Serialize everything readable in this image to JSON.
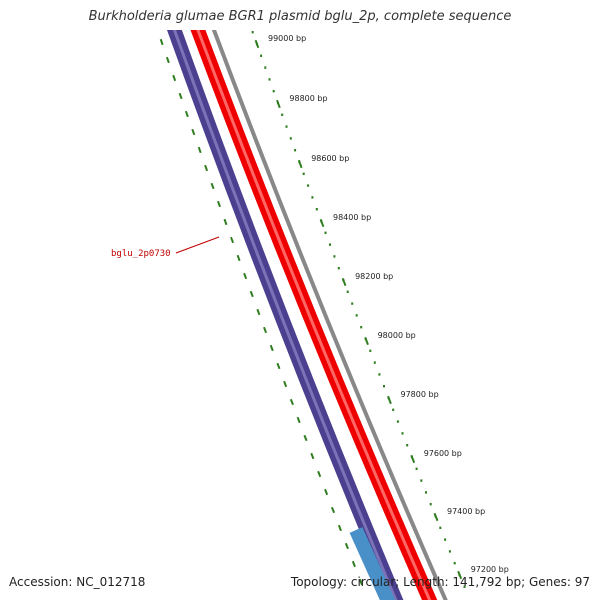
{
  "title": "Burkholderia glumae BGR1 plasmid bglu_2p, complete sequence",
  "footer": {
    "accession": "Accession: NC_012718",
    "summary": "Topology: circular; Length: 141,792 bp; Genes: 97"
  },
  "scale": {
    "ticks": [
      "99000 bp",
      "98800 bp",
      "98600 bp",
      "98400 bp",
      "98200 bp",
      "98000 bp",
      "97800 bp",
      "97600 bp",
      "97400 bp",
      "97200 bp"
    ]
  },
  "genes": [
    {
      "name": "bglu_2p0730"
    }
  ],
  "colors": {
    "cds": "#4b3f8f",
    "cds_light": "#4a90c8",
    "gene": "#ee0000",
    "backbone": "#888888",
    "ticks": "#2e7d1f",
    "label": "#c00000"
  }
}
